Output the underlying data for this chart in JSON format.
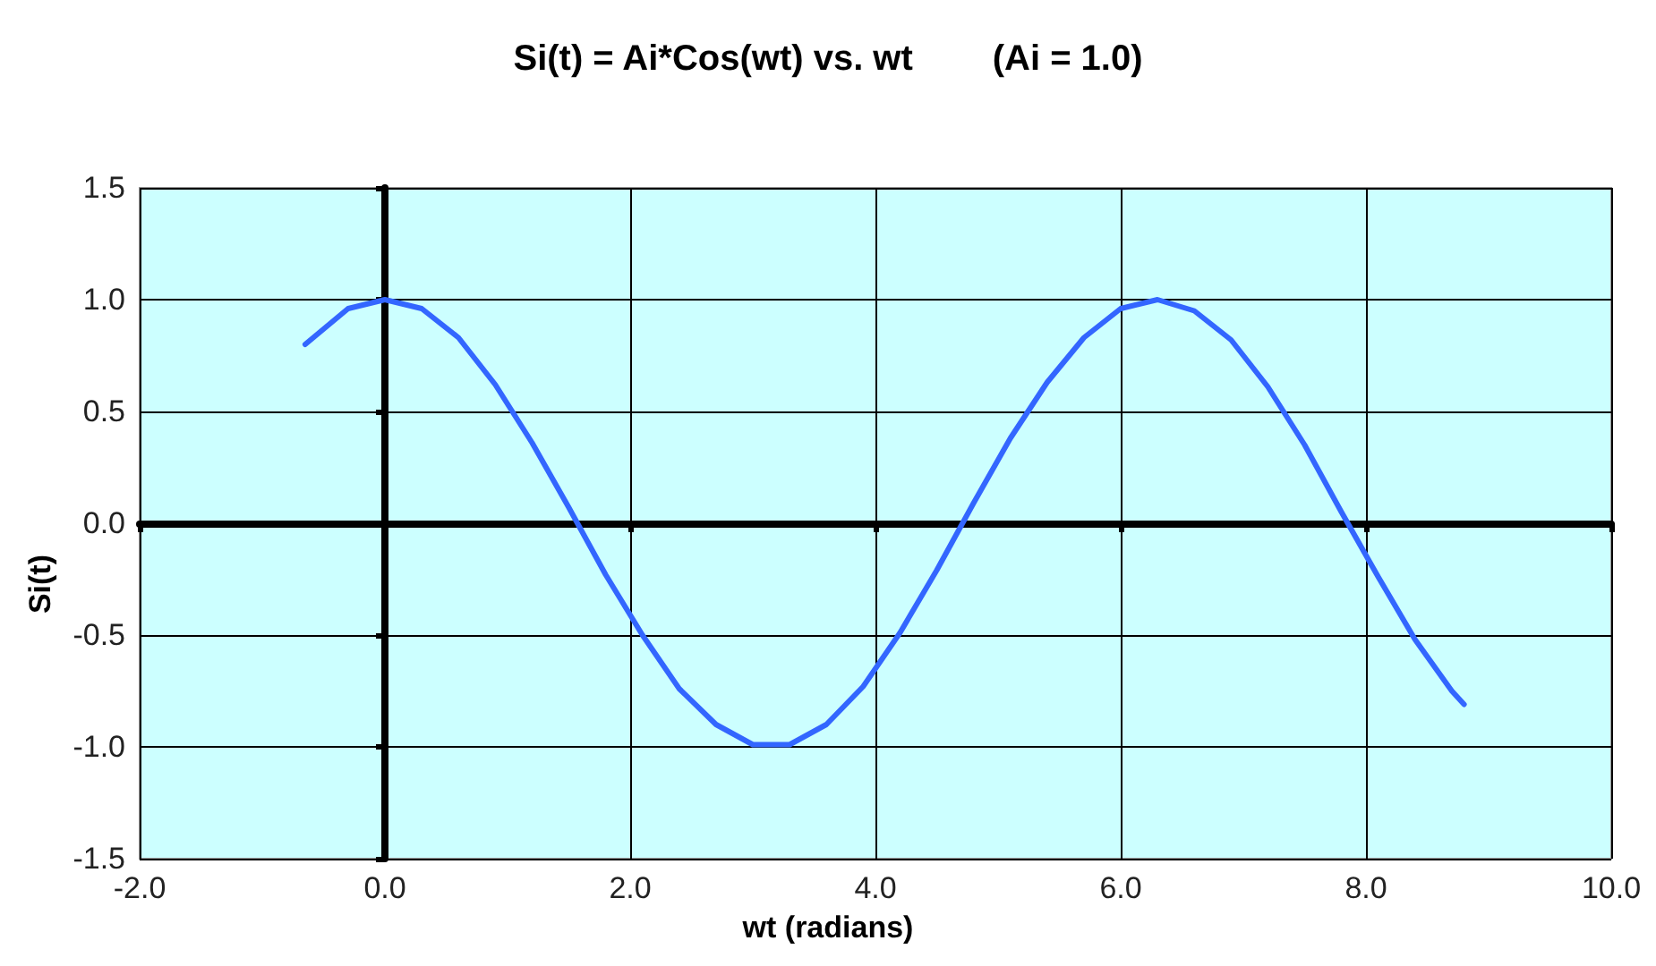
{
  "chart_data": {
    "type": "line",
    "title": "Si(t) = Ai*Cos(wt) vs. wt        (Ai = 1.0)",
    "xlabel": "wt (radians)",
    "ylabel": "Si(t)",
    "x": [
      -0.65,
      -0.3,
      0,
      0.3,
      0.6,
      0.9,
      1.2,
      1.5,
      1.8,
      2.1,
      2.4,
      2.7,
      3.0,
      3.3,
      3.6,
      3.9,
      4.2,
      4.5,
      4.8,
      5.1,
      5.4,
      5.7,
      6.0,
      6.3,
      6.6,
      6.9,
      7.2,
      7.5,
      7.8,
      8.1,
      8.4,
      8.7,
      8.8
    ],
    "series": [
      {
        "color": "#3366ff",
        "values": [
          0.8,
          0.96,
          1.0,
          0.96,
          0.83,
          0.62,
          0.36,
          0.07,
          -0.23,
          -0.5,
          -0.74,
          -0.9,
          -0.99,
          -0.99,
          -0.9,
          -0.73,
          -0.49,
          -0.21,
          0.09,
          0.38,
          0.63,
          0.83,
          0.96,
          1.0,
          0.95,
          0.82,
          0.61,
          0.35,
          0.05,
          -0.24,
          -0.52,
          -0.75,
          -0.81
        ]
      }
    ],
    "xlim": [
      -2,
      10
    ],
    "xticks": [
      {
        "value": -2,
        "label": "-2.0"
      },
      {
        "value": 0,
        "label": "0.0"
      },
      {
        "value": 2,
        "label": "2.0"
      },
      {
        "value": 4,
        "label": "4.0"
      },
      {
        "value": 6,
        "label": "6.0"
      },
      {
        "value": 8,
        "label": "8.0"
      },
      {
        "value": 10,
        "label": "10.0"
      }
    ],
    "ylim": [
      -1.5,
      1.5
    ],
    "yticks": [
      -1.5,
      {
        "value": -1,
        "label": "-1.0"
      },
      -0.5,
      {
        "value": 0,
        "label": "0.0"
      },
      0.5,
      {
        "value": 1,
        "label": "1.0"
      },
      1.5
    ],
    "grid": true,
    "marker": "none",
    "line_style": "solid"
  }
}
